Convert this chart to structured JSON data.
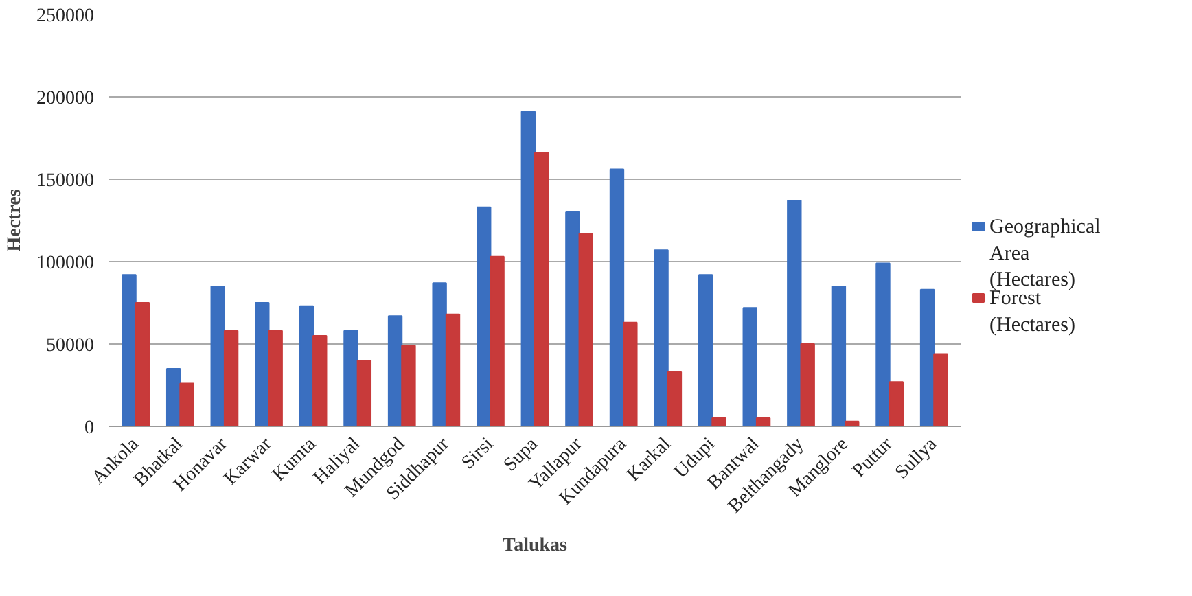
{
  "chart_data": {
    "type": "bar",
    "xlabel": "Talukas",
    "ylabel": "Hectres",
    "categories": [
      "Ankola",
      "Bhatkal",
      "Honavar",
      "Karwar",
      "Kumta",
      "Haliyal",
      "Mundgod",
      "Siddhapur",
      "Sirsi",
      "Supa",
      "Yallapur",
      "Kundapura",
      "Karkal",
      "Udupi",
      "Bantwal",
      "Belthangady",
      "Manglore",
      "Puttur",
      "Sullya"
    ],
    "series": [
      {
        "name": "Geographical Area (Hectares)",
        "color": "#3a6fc0",
        "values": [
          92000,
          35000,
          85000,
          75000,
          73000,
          58000,
          67000,
          87000,
          133000,
          191000,
          130000,
          156000,
          107000,
          92000,
          72000,
          137000,
          85000,
          99000,
          83000
        ]
      },
      {
        "name": "Forest (Hectares)",
        "color": "#c83a3a",
        "values": [
          75000,
          26000,
          58000,
          58000,
          55000,
          40000,
          49000,
          68000,
          103000,
          166000,
          117000,
          63000,
          33000,
          5000,
          5000,
          50000,
          3000,
          27000,
          44000
        ]
      }
    ],
    "ylim": [
      0,
      250000
    ],
    "yticks": [
      0,
      50000,
      100000,
      150000,
      200000,
      250000
    ],
    "grid": "y",
    "legend": "right"
  }
}
